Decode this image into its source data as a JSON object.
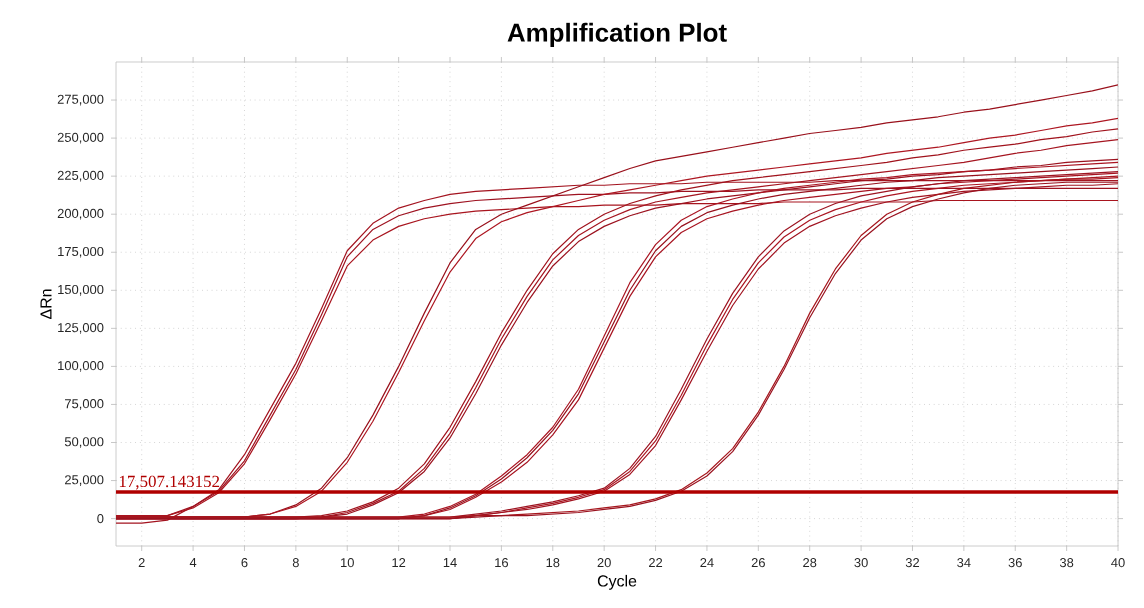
{
  "chart_data": {
    "type": "line",
    "title": "Amplification Plot",
    "xlabel": "Cycle",
    "ylabel": "ΔRn",
    "x": [
      1,
      2,
      3,
      4,
      5,
      6,
      7,
      8,
      9,
      10,
      11,
      12,
      13,
      14,
      15,
      16,
      17,
      18,
      19,
      20,
      21,
      22,
      23,
      24,
      25,
      26,
      27,
      28,
      29,
      30,
      31,
      32,
      33,
      34,
      35,
      36,
      37,
      38,
      39,
      40
    ],
    "xlim": [
      1,
      40
    ],
    "ylim": [
      -18000,
      300000
    ],
    "xticks": [
      2,
      4,
      6,
      8,
      10,
      12,
      14,
      16,
      18,
      20,
      22,
      24,
      26,
      28,
      30,
      32,
      34,
      36,
      38,
      40
    ],
    "yticks": [
      {
        "value": 0,
        "label": "0"
      },
      {
        "value": 25000,
        "label": "25,000"
      },
      {
        "value": 50000,
        "label": "50,000"
      },
      {
        "value": 75000,
        "label": "75,000"
      },
      {
        "value": 100000,
        "label": "100,000"
      },
      {
        "value": 125000,
        "label": "125,000"
      },
      {
        "value": 150000,
        "label": "150,000"
      },
      {
        "value": 175000,
        "label": "175,000"
      },
      {
        "value": 200000,
        "label": "200,000"
      },
      {
        "value": 225000,
        "label": "225,000"
      },
      {
        "value": 250000,
        "label": "250,000"
      },
      {
        "value": 275000,
        "label": "275,000"
      }
    ],
    "grid": true,
    "line_style": "solid",
    "ref_lines": [
      {
        "axis": "y",
        "value": 17507.143152,
        "label": "17,507.143152",
        "color": "#b00000"
      }
    ],
    "series": [
      {
        "color": "#a3131f",
        "values": [
          -3000,
          -3000,
          -1000,
          8000,
          19000,
          42000,
          72000,
          102000,
          138000,
          176000,
          194000,
          204000,
          209000,
          213000,
          215000,
          216000,
          217000,
          218000,
          219000,
          219000,
          220000,
          220000,
          220000,
          221000,
          221000,
          221000,
          221000,
          221000,
          222000,
          222000,
          222000,
          222000,
          222000,
          222000,
          222000,
          222000,
          222000,
          222000,
          222000,
          222000
        ]
      },
      {
        "color": "#9e1220",
        "values": [
          2000,
          2000,
          2000,
          8000,
          18000,
          38000,
          68000,
          98000,
          134000,
          172000,
          190000,
          199000,
          204000,
          207000,
          209000,
          210000,
          211000,
          212000,
          213000,
          213000,
          214000,
          214000,
          215000,
          215000,
          215000,
          216000,
          216000,
          216000,
          216000,
          217000,
          217000,
          217000,
          217000,
          217000,
          217000,
          217000,
          217000,
          217000,
          217000,
          217000
        ]
      },
      {
        "color": "#a8141e",
        "values": [
          2000,
          2000,
          2000,
          7000,
          17000,
          36000,
          65000,
          95000,
          130000,
          166000,
          183000,
          192000,
          197000,
          200000,
          202000,
          203000,
          204000,
          205000,
          205000,
          206000,
          206000,
          206000,
          207000,
          207000,
          207000,
          207000,
          208000,
          208000,
          208000,
          208000,
          208000,
          208000,
          209000,
          209000,
          209000,
          209000,
          209000,
          209000,
          209000,
          209000
        ]
      },
      {
        "color": "#99101b",
        "values": [
          1000,
          1000,
          1000,
          1000,
          1000,
          1000,
          3000,
          9000,
          20000,
          40000,
          68000,
          100000,
          135000,
          168000,
          190000,
          200000,
          206000,
          212000,
          218000,
          224000,
          230000,
          235000,
          238000,
          241000,
          244000,
          247000,
          250000,
          253000,
          255000,
          257000,
          260000,
          262000,
          264000,
          267000,
          269000,
          272000,
          275000,
          278000,
          281000,
          285000
        ]
      },
      {
        "color": "#ad1621",
        "values": [
          1000,
          1000,
          1000,
          1000,
          1000,
          1000,
          3000,
          8000,
          18000,
          37000,
          64000,
          96000,
          130000,
          162000,
          184000,
          195000,
          201000,
          205000,
          209000,
          213000,
          216000,
          219000,
          222000,
          225000,
          227000,
          229000,
          231000,
          233000,
          235000,
          237000,
          240000,
          242000,
          244000,
          247000,
          250000,
          252000,
          255000,
          258000,
          260000,
          263000
        ]
      },
      {
        "color": "#a0121c",
        "values": [
          1000,
          1000,
          1000,
          1000,
          1000,
          1000,
          1000,
          1000,
          2000,
          5000,
          11000,
          20000,
          36000,
          60000,
          90000,
          122000,
          150000,
          174000,
          190000,
          200000,
          207000,
          212000,
          216000,
          219000,
          222000,
          224000,
          226000,
          228000,
          230000,
          232000,
          234000,
          237000,
          239000,
          242000,
          244000,
          246000,
          249000,
          251000,
          254000,
          256000
        ]
      },
      {
        "color": "#a51520",
        "values": [
          0,
          0,
          0,
          0,
          0,
          0,
          0,
          0,
          1000,
          4000,
          10000,
          18000,
          33000,
          56000,
          86000,
          118000,
          146000,
          170000,
          186000,
          196000,
          203000,
          208000,
          211000,
          214000,
          216000,
          218000,
          220000,
          222000,
          224000,
          226000,
          228000,
          230000,
          232000,
          234000,
          237000,
          240000,
          242000,
          245000,
          247000,
          249000
        ]
      },
      {
        "color": "#9b111e",
        "values": [
          0,
          0,
          0,
          0,
          0,
          0,
          0,
          0,
          1000,
          3000,
          9000,
          17000,
          31000,
          53000,
          82000,
          114000,
          142000,
          166000,
          182000,
          192000,
          199000,
          204000,
          207000,
          210000,
          212000,
          214000,
          216000,
          218000,
          220000,
          222000,
          223000,
          225000,
          226000,
          228000,
          229000,
          231000,
          232000,
          234000,
          235000,
          236000
        ]
      },
      {
        "color": "#aa1522",
        "values": [
          1000,
          1000,
          1000,
          1000,
          1000,
          1000,
          1000,
          1000,
          1000,
          1000,
          1000,
          1000,
          3000,
          8000,
          16000,
          28000,
          42000,
          60000,
          85000,
          120000,
          155000,
          180000,
          196000,
          205000,
          210000,
          214000,
          217000,
          219000,
          221000,
          223000,
          224000,
          226000,
          227000,
          228000,
          229000,
          230000,
          231000,
          232000,
          233000,
          234000
        ]
      },
      {
        "color": "#97101c",
        "values": [
          0,
          0,
          0,
          0,
          0,
          0,
          0,
          0,
          0,
          0,
          0,
          0,
          2000,
          7000,
          15000,
          26000,
          40000,
          58000,
          82000,
          116000,
          150000,
          176000,
          192000,
          201000,
          206000,
          210000,
          213000,
          215000,
          217000,
          219000,
          221000,
          222000,
          224000,
          225000,
          226000,
          227000,
          228000,
          229000,
          230000,
          231000
        ]
      },
      {
        "color": "#a71320",
        "values": [
          0,
          0,
          0,
          0,
          0,
          0,
          0,
          0,
          0,
          0,
          0,
          0,
          2000,
          6000,
          14000,
          24000,
          37000,
          55000,
          78000,
          112000,
          146000,
          172000,
          188000,
          197000,
          202000,
          206000,
          209000,
          211000,
          213000,
          215000,
          217000,
          218000,
          220000,
          221000,
          222000,
          223000,
          224000,
          225000,
          226000,
          227000
        ]
      },
      {
        "color": "#9d1421",
        "values": [
          1000,
          1000,
          1000,
          1000,
          1000,
          1000,
          1000,
          1000,
          1000,
          1000,
          1000,
          1000,
          1000,
          1000,
          3000,
          5000,
          8000,
          11000,
          15000,
          20000,
          33000,
          54000,
          85000,
          118000,
          148000,
          172000,
          189000,
          200000,
          207000,
          212000,
          215000,
          218000,
          220000,
          222000,
          223000,
          224000,
          225000,
          226000,
          227000,
          228000
        ]
      },
      {
        "color": "#ab1420",
        "values": [
          0,
          0,
          0,
          0,
          0,
          0,
          0,
          0,
          0,
          0,
          0,
          0,
          0,
          0,
          2000,
          4000,
          7000,
          10000,
          14000,
          19000,
          31000,
          51000,
          81000,
          114000,
          144000,
          168000,
          185000,
          196000,
          203000,
          208000,
          212000,
          215000,
          217000,
          219000,
          220000,
          221000,
          222000,
          223000,
          223000,
          224000
        ]
      },
      {
        "color": "#a11320",
        "values": [
          0,
          0,
          0,
          0,
          0,
          0,
          0,
          0,
          0,
          0,
          0,
          0,
          0,
          0,
          2000,
          4000,
          6000,
          9000,
          13000,
          18000,
          29000,
          48000,
          78000,
          110000,
          140000,
          164000,
          181000,
          192000,
          199000,
          204000,
          208000,
          211000,
          213000,
          215000,
          216000,
          217000,
          218000,
          219000,
          219000,
          220000
        ]
      },
      {
        "color": "#a6161d",
        "values": [
          1000,
          1000,
          1000,
          1000,
          1000,
          1000,
          1000,
          1000,
          1000,
          1000,
          1000,
          1000,
          1000,
          1000,
          2000,
          2000,
          3000,
          4000,
          5000,
          7000,
          9000,
          13000,
          19000,
          30000,
          46000,
          70000,
          100000,
          135000,
          164000,
          186000,
          200000,
          208000,
          213000,
          217000,
          219000,
          221000,
          222000,
          223000,
          224000,
          225000
        ]
      },
      {
        "color": "#9a121f",
        "values": [
          0,
          0,
          0,
          0,
          0,
          0,
          0,
          0,
          0,
          0,
          0,
          0,
          0,
          0,
          1000,
          2000,
          2000,
          3000,
          4000,
          6000,
          8000,
          12000,
          18000,
          28000,
          44000,
          68000,
          98000,
          132000,
          161000,
          183000,
          197000,
          205000,
          210000,
          214000,
          217000,
          219000,
          220000,
          221000,
          221000,
          221000
        ]
      }
    ]
  }
}
